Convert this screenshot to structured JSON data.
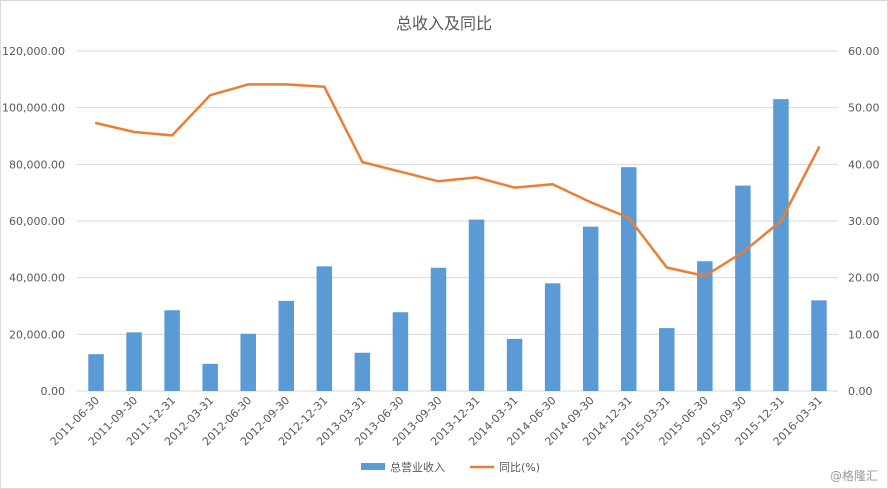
{
  "chart_data": {
    "type": "bar",
    "title": "总收入及同比",
    "categories": [
      "2011-06-30",
      "2011-09-30",
      "2011-12-31",
      "2012-03-31",
      "2012-06-30",
      "2012-09-30",
      "2012-12-31",
      "2013-03-31",
      "2013-06-30",
      "2013-09-30",
      "2013-12-31",
      "2014-03-31",
      "2014-06-30",
      "2014-09-30",
      "2014-12-31",
      "2015-03-31",
      "2015-06-30",
      "2015-09-30",
      "2015-12-31",
      "2016-03-31"
    ],
    "series": [
      {
        "name": "总营业收入",
        "type": "bar",
        "axis": "left",
        "values": [
          13000,
          20700,
          28500,
          9600,
          20200,
          31800,
          44000,
          13500,
          27800,
          43500,
          60500,
          18400,
          38000,
          58000,
          79000,
          22200,
          45800,
          72500,
          103000,
          32000
        ]
      },
      {
        "name": "同比(%)",
        "type": "line",
        "axis": "right",
        "values": [
          47.3,
          45.7,
          45.1,
          52.2,
          54.1,
          54.1,
          53.7,
          40.4,
          38.7,
          37.0,
          37.7,
          35.9,
          36.5,
          33.3,
          30.6,
          21.8,
          20.3,
          24.5,
          30.0,
          43.0
        ]
      }
    ],
    "y_left": {
      "ylim": [
        0,
        120000
      ],
      "ticks": [
        "0.00",
        "20,000.00",
        "40,000.00",
        "60,000.00",
        "80,000.00",
        "100,000.00",
        "120,000.00"
      ]
    },
    "y_right": {
      "ylim": [
        0,
        60
      ],
      "ticks": [
        "0.00",
        "10.00",
        "20.00",
        "30.00",
        "40.00",
        "50.00",
        "60.00"
      ]
    },
    "grid": true,
    "legend_position": "bottom",
    "colors": {
      "bar": "#5b9bd5",
      "line": "#ed7d31",
      "grid": "#d9d9d9",
      "text": "#595959"
    }
  },
  "watermark": "@格隆汇"
}
